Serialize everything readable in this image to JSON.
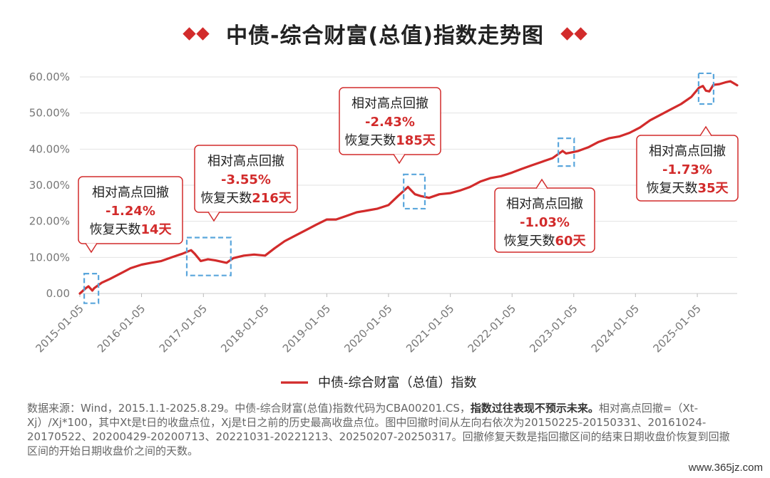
{
  "title": "中债-综合财富(总值)指数走势图",
  "chart_data": {
    "type": "line",
    "title": "中债-综合财富(总值)指数走势图",
    "ylim": [
      0,
      60
    ],
    "yticks": [
      "0.00",
      "10.00%",
      "20.00%",
      "30.00%",
      "40.00%",
      "50.00%",
      "60.00%"
    ],
    "xticks": [
      "2015-01-05",
      "2016-01-05",
      "2017-01-05",
      "2018-01-05",
      "2019-01-05",
      "2020-01-05",
      "2021-01-05",
      "2022-01-05",
      "2023-01-05",
      "2024-01-05",
      "2025-01-05"
    ],
    "xlim": [
      "2015-01-05",
      "2025-08-29"
    ],
    "grid": "horizontal",
    "legend_position": "bottom-center",
    "series": [
      {
        "name": "中债-综合财富（总值）指数",
        "color": "#d22b2b",
        "points": [
          [
            "2015-01-05",
            0.0
          ],
          [
            "2015-02-10",
            1.5
          ],
          [
            "2015-02-25",
            2.0
          ],
          [
            "2015-03-20",
            0.8
          ],
          [
            "2015-03-31",
            1.5
          ],
          [
            "2015-05-15",
            3.0
          ],
          [
            "2015-07-01",
            4.0
          ],
          [
            "2015-09-01",
            5.5
          ],
          [
            "2015-11-01",
            7.0
          ],
          [
            "2016-01-05",
            8.0
          ],
          [
            "2016-03-01",
            8.5
          ],
          [
            "2016-05-01",
            9.0
          ],
          [
            "2016-07-01",
            10.0
          ],
          [
            "2016-09-01",
            11.0
          ],
          [
            "2016-10-24",
            12.0
          ],
          [
            "2016-11-15",
            11.0
          ],
          [
            "2016-12-20",
            9.0
          ],
          [
            "2017-02-01",
            9.5
          ],
          [
            "2017-03-15",
            9.2
          ],
          [
            "2017-05-22",
            8.5
          ],
          [
            "2017-07-01",
            9.8
          ],
          [
            "2017-09-01",
            10.5
          ],
          [
            "2017-11-01",
            10.8
          ],
          [
            "2018-01-05",
            10.5
          ],
          [
            "2018-03-01",
            12.5
          ],
          [
            "2018-05-01",
            14.5
          ],
          [
            "2018-07-01",
            16.0
          ],
          [
            "2018-09-01",
            17.5
          ],
          [
            "2018-11-01",
            19.0
          ],
          [
            "2019-01-05",
            20.5
          ],
          [
            "2019-03-01",
            20.5
          ],
          [
            "2019-05-01",
            21.5
          ],
          [
            "2019-07-01",
            22.5
          ],
          [
            "2019-09-01",
            23.0
          ],
          [
            "2019-11-01",
            23.5
          ],
          [
            "2020-01-05",
            24.5
          ],
          [
            "2020-03-01",
            27.0
          ],
          [
            "2020-04-29",
            29.5
          ],
          [
            "2020-05-20",
            28.5
          ],
          [
            "2020-06-10",
            27.5
          ],
          [
            "2020-07-13",
            27.0
          ],
          [
            "2020-09-01",
            26.5
          ],
          [
            "2020-11-01",
            27.5
          ],
          [
            "2021-01-05",
            27.8
          ],
          [
            "2021-03-01",
            28.5
          ],
          [
            "2021-05-01",
            29.5
          ],
          [
            "2021-07-01",
            31.0
          ],
          [
            "2021-09-01",
            32.0
          ],
          [
            "2021-11-01",
            32.5
          ],
          [
            "2022-01-05",
            33.5
          ],
          [
            "2022-03-01",
            34.5
          ],
          [
            "2022-05-01",
            35.5
          ],
          [
            "2022-07-01",
            36.5
          ],
          [
            "2022-09-01",
            37.5
          ],
          [
            "2022-10-31",
            39.5
          ],
          [
            "2022-11-20",
            38.8
          ],
          [
            "2022-12-13",
            39.0
          ],
          [
            "2023-02-01",
            39.5
          ],
          [
            "2023-04-01",
            40.5
          ],
          [
            "2023-06-01",
            42.0
          ],
          [
            "2023-08-01",
            43.0
          ],
          [
            "2023-10-01",
            43.5
          ],
          [
            "2023-12-01",
            44.5
          ],
          [
            "2024-02-01",
            46.0
          ],
          [
            "2024-04-01",
            48.0
          ],
          [
            "2024-06-01",
            49.5
          ],
          [
            "2024-08-01",
            51.0
          ],
          [
            "2024-10-01",
            52.5
          ],
          [
            "2024-12-01",
            54.5
          ],
          [
            "2025-01-15",
            57.0
          ],
          [
            "2025-02-07",
            57.5
          ],
          [
            "2025-02-25",
            56.2
          ],
          [
            "2025-03-17",
            56.0
          ],
          [
            "2025-04-10",
            57.8
          ],
          [
            "2025-05-15",
            58.0
          ],
          [
            "2025-06-20",
            58.5
          ],
          [
            "2025-07-20",
            58.8
          ],
          [
            "2025-08-29",
            57.7
          ]
        ]
      }
    ],
    "annotations": [
      {
        "label": "相对高点回撤",
        "drawdown": "-1.24%",
        "recovery_prefix": "恢复天数",
        "recovery_days": "14天",
        "start": "2015-02-25",
        "end": "2015-03-31"
      },
      {
        "label": "相对高点回撤",
        "drawdown": "-3.55%",
        "recovery_prefix": "恢复天数",
        "recovery_days": "216天",
        "start": "2016-10-24",
        "end": "2017-05-22"
      },
      {
        "label": "相对高点回撤",
        "drawdown": "-2.43%",
        "recovery_prefix": "恢复天数",
        "recovery_days": "185天",
        "start": "2020-04-29",
        "end": "2020-07-13"
      },
      {
        "label": "相对高点回撤",
        "drawdown": "-1.03%",
        "recovery_prefix": "恢复天数",
        "recovery_days": "60天",
        "start": "2022-10-31",
        "end": "2022-12-13"
      },
      {
        "label": "相对高点回撤",
        "drawdown": "-1.73%",
        "recovery_prefix": "恢复天数",
        "recovery_days": "35天",
        "start": "2025-02-07",
        "end": "2025-03-17"
      }
    ]
  },
  "legend_label": "中债-综合财富（总值）指数",
  "source_pre": "数据来源：Wind，2015.1.1-2025.8.29。中债-综合财富(总值)指数代码为CBA00201.CS，",
  "source_bold": "指数过往表现不预示未来。",
  "source_post": "相对高点回撤=（Xt-Xj）/Xj*100，其中Xt是t日的收盘点位，Xj是t日之前的历史最高收盘点位。图中回撤时间从左向右依次为20150225-20150331、20161024-20170522、20200429-20200713、20221031-20221213、20250207-20250317。回撤修复天数是指回撤区间的结束日期收盘价恢复到回撤区间的开始日期收盘价之间的天数。",
  "watermark": "www.365jz.com",
  "colors": {
    "line": "#d22b2b",
    "accent": "#d22b2b",
    "box_dash": "#5aa6dc",
    "grid": "#e2e2e2",
    "axis_text": "#777777"
  }
}
